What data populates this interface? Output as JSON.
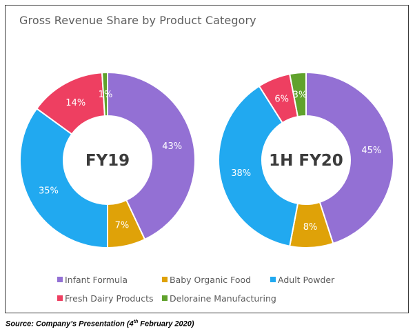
{
  "title": "Gross Revenue Share by Product Category",
  "source": {
    "prefix": "Source: Company’s Presentation (4",
    "sup": "th",
    "suffix": " February 2020)"
  },
  "chart_data": {
    "type": "donut",
    "categories": [
      "Infant Formula",
      "Baby Organic Food",
      "Adult Powder",
      "Fresh Dairy Products",
      "Deloraine Manufacturing"
    ],
    "colors": [
      "#9370d4",
      "#dfa208",
      "#21a9f0",
      "#ee3f61",
      "#60a22c"
    ],
    "series": [
      {
        "name": "FY19",
        "values": [
          43,
          7,
          35,
          14,
          1
        ],
        "labels": [
          "43%",
          "7%",
          "35%",
          "14%",
          "1%"
        ]
      },
      {
        "name": "1H FY20",
        "values": [
          45,
          8,
          38,
          6,
          3
        ],
        "labels": [
          "45%",
          "8%",
          "38%",
          "6%",
          "3%"
        ]
      }
    ],
    "legend": "bottom"
  }
}
